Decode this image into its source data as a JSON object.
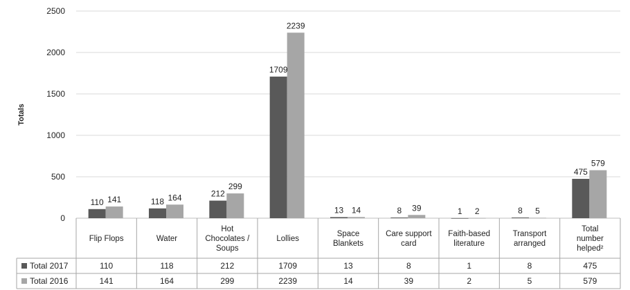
{
  "chart_data": {
    "type": "bar",
    "ylabel": "Totals",
    "xlabel": "",
    "ylim": [
      0,
      2500
    ],
    "yticks": [
      0,
      500,
      1000,
      1500,
      2000,
      2500
    ],
    "grid": true,
    "legend_placement": "table-rows",
    "categories": [
      [
        "Flip Flops"
      ],
      [
        "Water"
      ],
      [
        "Hot",
        "Chocolates /",
        "Soups"
      ],
      [
        "Lollies"
      ],
      [
        "Space",
        "Blankets"
      ],
      [
        "Care support",
        "card"
      ],
      [
        "Faith-based",
        "literature"
      ],
      [
        "Transport",
        "arranged"
      ],
      [
        "Total",
        "number",
        "helped²"
      ]
    ],
    "series": [
      {
        "name": "Total 2017",
        "color": "#595959",
        "values": [
          110,
          118,
          212,
          1709,
          13,
          8,
          1,
          8,
          475
        ]
      },
      {
        "name": "Total 2016",
        "color": "#a6a6a6",
        "values": [
          141,
          164,
          299,
          2239,
          14,
          39,
          2,
          5,
          579
        ]
      }
    ]
  }
}
